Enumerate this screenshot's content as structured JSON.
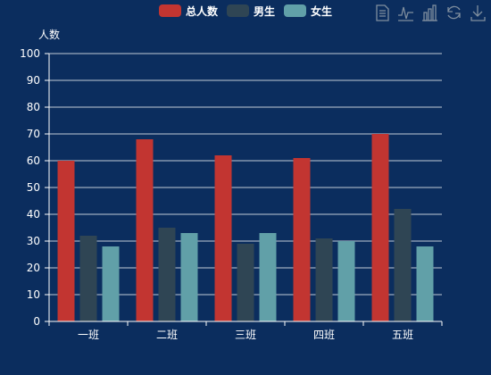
{
  "chart_data": {
    "type": "bar",
    "ylabel": "人数",
    "xlabel": "",
    "categories": [
      "一班",
      "二班",
      "三班",
      "四班",
      "五班"
    ],
    "ylim": [
      0,
      100
    ],
    "yticks": [
      0,
      10,
      20,
      30,
      40,
      50,
      60,
      70,
      80,
      90,
      100
    ],
    "grid": true,
    "legend_position": "top-center",
    "series": [
      {
        "name": "总人数",
        "color": "#c23531",
        "values": [
          60,
          68,
          62,
          61,
          70
        ]
      },
      {
        "name": "男生",
        "color": "#2f4554",
        "values": [
          32,
          35,
          29,
          31,
          42
        ]
      },
      {
        "name": "女生",
        "color": "#61a0a8",
        "values": [
          28,
          33,
          33,
          30,
          28
        ]
      }
    ]
  },
  "toolbox": {
    "icons": [
      "data-view-icon",
      "line-chart-icon",
      "bar-chart-icon",
      "restore-icon",
      "save-image-icon"
    ]
  }
}
